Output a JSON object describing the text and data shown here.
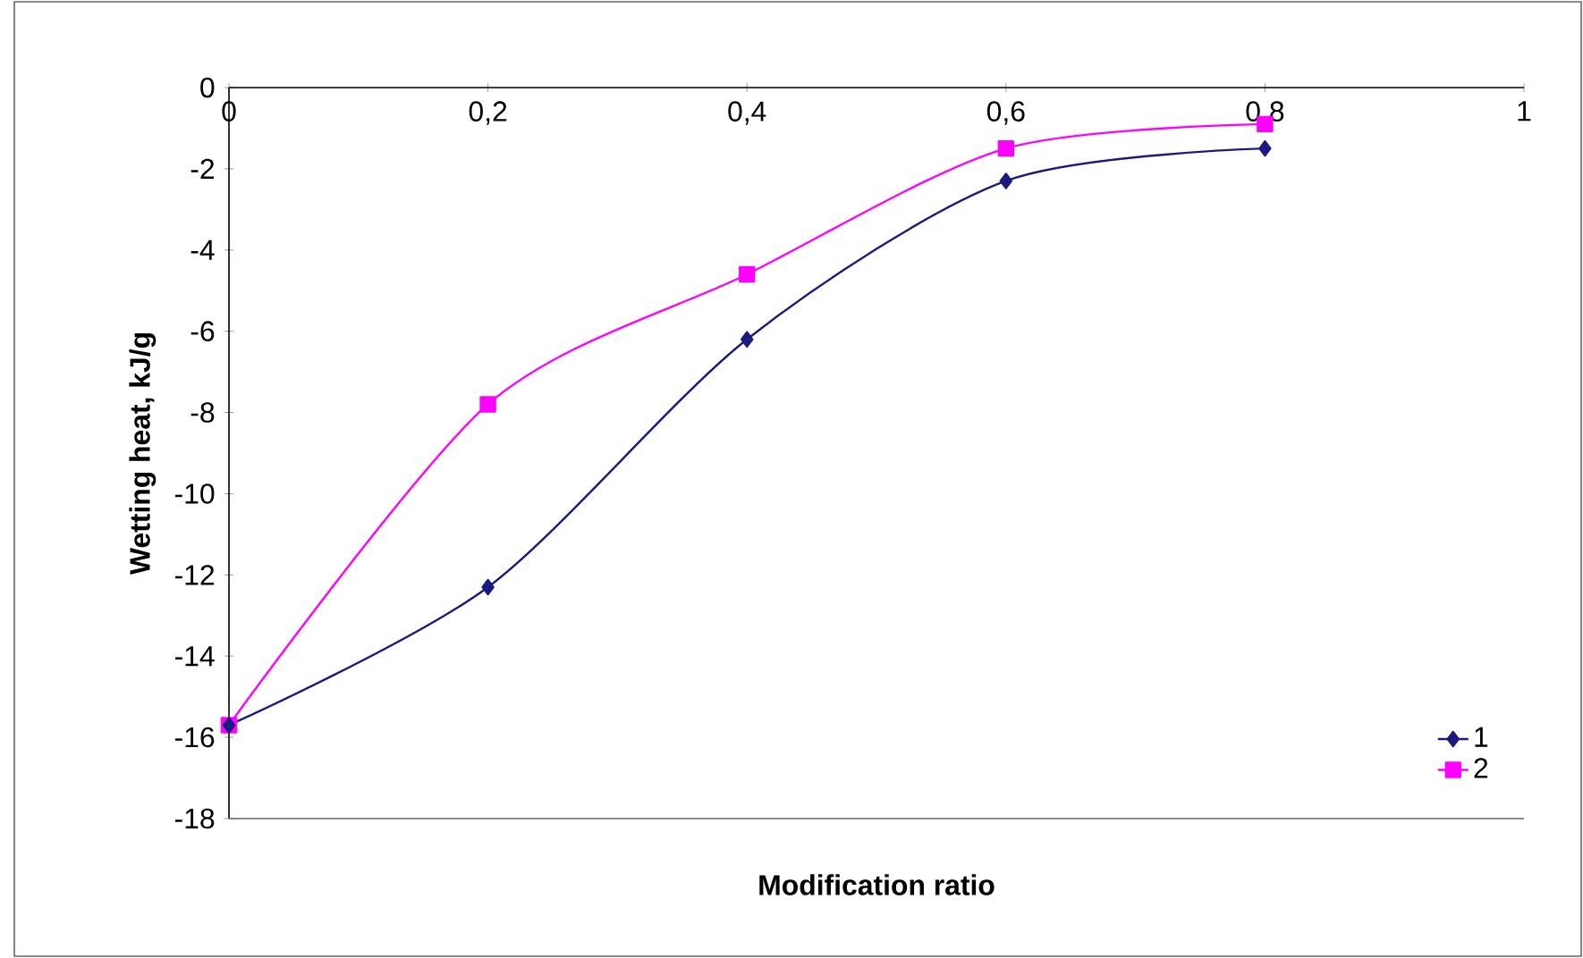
{
  "chart_data": {
    "type": "line",
    "xlabel": "Modification ratio",
    "ylabel": "Wetting heat, kJ/g",
    "x": [
      0,
      0.2,
      0.4,
      0.6,
      0.8
    ],
    "series": [
      {
        "name": "1",
        "color": "#1a1a80",
        "marker": "diamond",
        "values": [
          -15.7,
          -12.3,
          -6.2,
          -2.3,
          -1.5
        ]
      },
      {
        "name": "2",
        "color": "#ff00ff",
        "marker": "square",
        "values": [
          -15.7,
          -7.8,
          -4.6,
          -1.5,
          -0.9
        ]
      }
    ],
    "xlim": [
      0,
      1
    ],
    "ylim": [
      -18,
      0
    ],
    "xticks": [
      0,
      {
        "value": 0.2,
        "label": "0,2"
      },
      {
        "value": 0.4,
        "label": "0,4"
      },
      {
        "value": 0.6,
        "label": "0,6"
      },
      {
        "value": 0.8,
        "label": "0,8"
      },
      1
    ],
    "yticks": [
      -18,
      -16,
      -14,
      -12,
      -10,
      -8,
      -6,
      -4,
      -2,
      0
    ],
    "grid": false,
    "legend": "bottom right",
    "line_style": "solid"
  }
}
